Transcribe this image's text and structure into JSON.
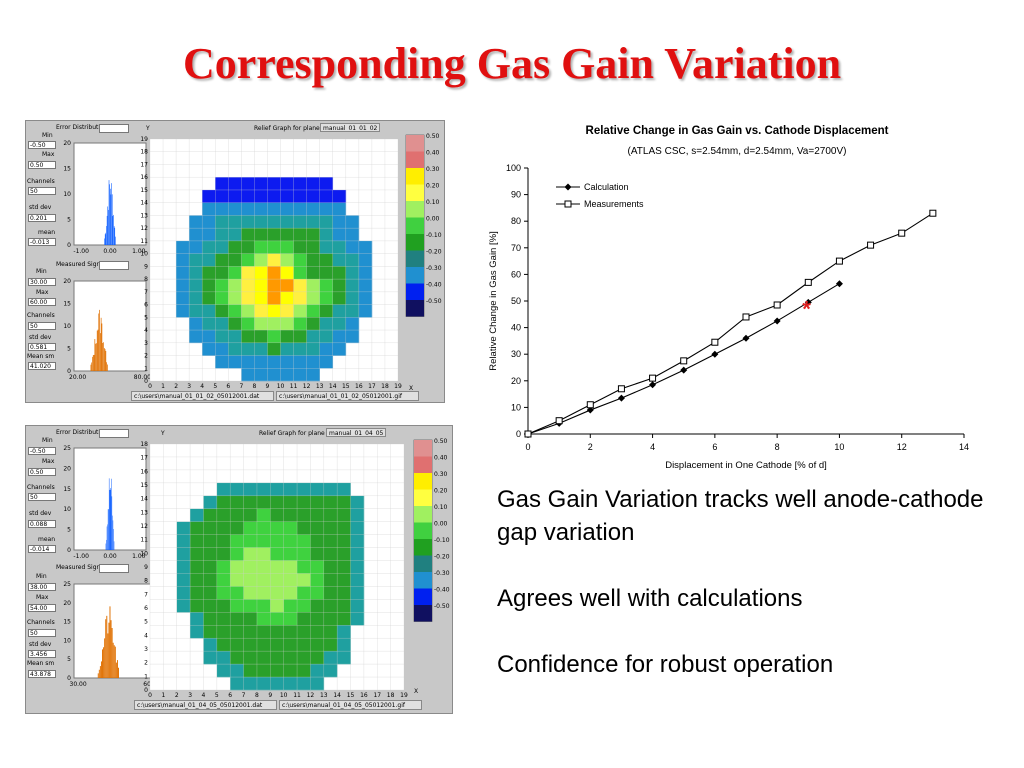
{
  "slide": {
    "title": "Corresponding Gas Gain Variation"
  },
  "bullets": [
    "Gas Gain Variation tracks well anode-cathode gap variation",
    "Agrees well with calculations",
    "Confidence for robust operation"
  ],
  "panels": [
    {
      "error_hist_title": "Error Distributio",
      "measured_hist_title": "Measured Signa",
      "relief_title": "Relief Graph for plane",
      "relief_name": "manual_01_01_02",
      "dat_path": "c:\\users\\manual_01_01_02_05012001.dat",
      "gif_path": "c:\\users\\manual_01_01_02_05012001.gif",
      "err_min_label": "Min",
      "err_min": "-0.50",
      "err_max_label": "Max",
      "err_max": "0.50",
      "err_channels_label": "Channels",
      "err_channels": "50",
      "err_std_label": "std dev",
      "err_std": "0.201",
      "err_mean_label": "mean",
      "err_mean": "-0.013",
      "sig_min_label": "Min",
      "sig_min": "30.00",
      "sig_max_label": "Max",
      "sig_max": "60.00",
      "sig_channels_label": "Channels",
      "sig_channels": "50",
      "sig_std_label": "std dev",
      "sig_std": "0.581",
      "sig_mean_label": "Mean sm",
      "sig_mean": "41.020",
      "err_x_ticks": [
        "-1.00",
        "0.00",
        "1.00"
      ],
      "err_y_ticks": [
        "0",
        "5",
        "10",
        "15",
        "20"
      ],
      "sig_x_ticks": [
        "20.00",
        "80.00"
      ],
      "sig_y_ticks": [
        "0",
        "5",
        "10",
        "15",
        "20"
      ],
      "y_axis_letter": "Y",
      "x_axis_letter": "X"
    },
    {
      "error_hist_title": "Error Distributio",
      "measured_hist_title": "Measured Signa",
      "relief_title": "Relief Graph for plane",
      "relief_name": "manual_01_04_05",
      "dat_path": "c:\\users\\manual_01_04_05_05012001.dat",
      "gif_path": "c:\\users\\manual_01_04_05_05012001.gif",
      "err_min_label": "Min",
      "err_min": "-0.50",
      "err_max_label": "Max",
      "err_max": "0.50",
      "err_channels_label": "Channels",
      "err_channels": "50",
      "err_std_label": "std dev",
      "err_std": "0.088",
      "err_mean_label": "mean",
      "err_mean": "-0.014",
      "sig_min_label": "Min",
      "sig_min": "38.00",
      "sig_max_label": "Max",
      "sig_max": "54.00",
      "sig_channels_label": "Channels",
      "sig_channels": "50",
      "sig_std_label": "std dev",
      "sig_std": "3.456",
      "sig_mean_label": "Mean sm",
      "sig_mean": "43.878",
      "err_x_ticks": [
        "-1.00",
        "0.00",
        "1.00"
      ],
      "err_y_ticks": [
        "0",
        "5",
        "10",
        "15",
        "20",
        "25"
      ],
      "sig_x_ticks": [
        "30.00",
        "60.00"
      ],
      "sig_y_ticks": [
        "0",
        "5",
        "10",
        "15",
        "20",
        "25"
      ],
      "y_axis_letter": "Y",
      "x_axis_letter": "X"
    }
  ],
  "colors": {
    "title": "#e01010",
    "hist_blue": "#1060ff",
    "hist_orange": "#e07000",
    "marker_star": "#e02020"
  },
  "scale_ticks": [
    "0.50",
    "0.40",
    "0.30",
    "0.20",
    "0.10",
    "0.00",
    "-0.10",
    "-0.20",
    "-0.30",
    "-0.40",
    "-0.50"
  ],
  "scale_colors": [
    "#e09090",
    "#e07070",
    "#ffee00",
    "#ffff40",
    "#a0f060",
    "#40d040",
    "#20a020",
    "#208080",
    "#2090d0",
    "#0020f0",
    "#101060"
  ],
  "relief_level_colors": [
    "#ffffff",
    "#0d1bf0",
    "#2090d0",
    "#1fa0a0",
    "#2aa02a",
    "#3fd23f",
    "#a0f060",
    "#fff040",
    "#ffff00",
    "#ff9900",
    "#e07070"
  ],
  "relief_maps": [
    {
      "grid": [
        "0000000000000000000",
        "0000000000000000000",
        "0000000000000000000",
        "0000011111111100000",
        "0000111111111110000",
        "0000222222222220000",
        "0002233333333322000",
        "0002233444444322000",
        "0022334455544332200",
        "0023344567654433200",
        "0023445789854443200",
        "0023456789976543200",
        "0023456789876543200",
        "0023345678765433200",
        "0002334566654332000",
        "0002233445443322000",
        "0000223334333220000",
        "0000022222222200000",
        "0000000222222000000"
      ],
      "x_ticks": [
        "0",
        "1",
        "2",
        "3",
        "4",
        "5",
        "6",
        "7",
        "8",
        "9",
        "10",
        "11",
        "12",
        "13",
        "14",
        "15",
        "16",
        "17",
        "18",
        "19"
      ],
      "y_ticks": [
        "0",
        "1",
        "2",
        "3",
        "4",
        "5",
        "6",
        "7",
        "8",
        "9",
        "10",
        "11",
        "12",
        "13",
        "14",
        "15",
        "16",
        "17",
        "18",
        "19"
      ]
    },
    {
      "grid": [
        "0000000000000000000",
        "0000000000000000000",
        "0000000000000000000",
        "0000033333333330000",
        "0000344444444443000",
        "0003444454444443000",
        "0034444555544443000",
        "0034445555554443000",
        "0034445665554443000",
        "0034456666655443000",
        "0034456666665443000",
        "0034455666655443000",
        "0034445556554443000",
        "0003444455544443000",
        "0003444444444430000",
        "0000344444444430000",
        "0000334444444330000",
        "0000033444443300000",
        "0000003333333000000"
      ],
      "x_ticks": [
        "0",
        "1",
        "2",
        "3",
        "4",
        "5",
        "6",
        "7",
        "8",
        "9",
        "10",
        "11",
        "12",
        "13",
        "14",
        "15",
        "16",
        "17",
        "18",
        "19"
      ],
      "y_ticks": [
        "0",
        "1",
        "2",
        "3",
        "4",
        "5",
        "6",
        "7",
        "8",
        "9",
        "10",
        "11",
        "12",
        "13",
        "14",
        "15",
        "16",
        "17",
        "18"
      ]
    }
  ],
  "chart_data": {
    "type": "line",
    "title": "Relative Change in Gas Gain vs. Cathode Displacement",
    "subtitle": "(ATLAS CSC, s=2.54mm, d=2.54mm, Va=2700V)",
    "xlabel": "Displacement in One Cathode [% of d]",
    "ylabel": "Relative Change in Gas Gain [%]",
    "xlim": [
      0,
      14
    ],
    "ylim": [
      0,
      100
    ],
    "x_ticks": [
      0,
      2,
      4,
      6,
      8,
      10,
      12,
      14
    ],
    "y_ticks": [
      0,
      10,
      20,
      30,
      40,
      50,
      60,
      70,
      80,
      90,
      100
    ],
    "legend_position": "top-left",
    "grid": false,
    "series": [
      {
        "name": "Calculation",
        "marker": "filled-diamond",
        "x": [
          0,
          1,
          2,
          3,
          4,
          5,
          6,
          7,
          8,
          9,
          10
        ],
        "y": [
          0,
          4,
          9,
          13.5,
          18.5,
          24,
          30,
          36,
          42.5,
          49.5,
          56.5
        ]
      },
      {
        "name": "Measurements",
        "marker": "open-square",
        "x": [
          0,
          1,
          2,
          3,
          4,
          5,
          6,
          7,
          8,
          9,
          10,
          11,
          12,
          13
        ],
        "y": [
          0,
          5,
          11,
          17,
          21,
          27.5,
          34.5,
          44,
          48.5,
          57,
          65,
          71,
          75.5,
          83
        ]
      }
    ],
    "annotations": [
      {
        "text": "*",
        "x": 9,
        "y": 49.5,
        "color": "#e02020"
      }
    ]
  }
}
